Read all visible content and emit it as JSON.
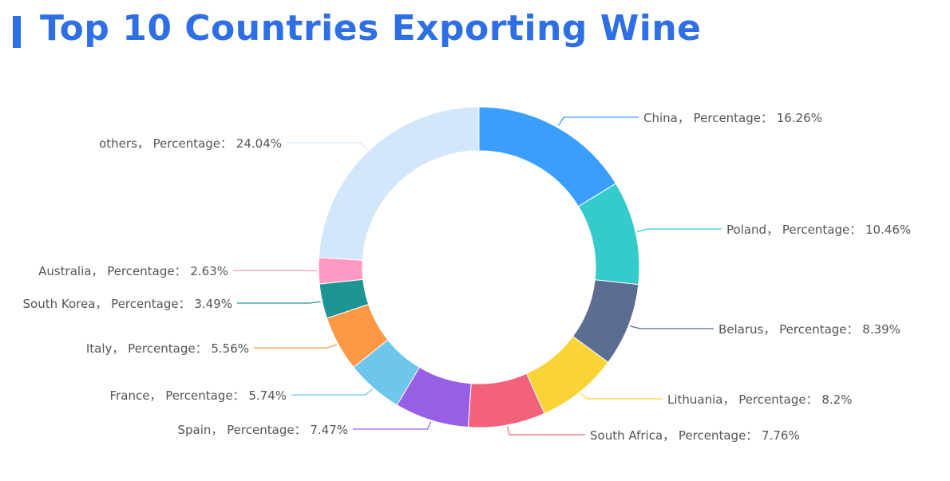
{
  "title": "Top 10 Countries Exporting Wine",
  "chart_data": {
    "type": "pie",
    "variant": "donut",
    "title": "Top 10 Countries Exporting Wine",
    "label_format": "{name}， Percentage： {value}%",
    "slices": [
      {
        "name": "China",
        "value": 16.26,
        "color": "#3a9ffc"
      },
      {
        "name": "Poland",
        "value": 10.46,
        "color": "#35cbca"
      },
      {
        "name": "Belarus",
        "value": 8.39,
        "color": "#5b6d90"
      },
      {
        "name": "Lithuania",
        "value": 8.2,
        "color": "#fad337"
      },
      {
        "name": "South Africa",
        "value": 7.76,
        "color": "#f2637b"
      },
      {
        "name": "Spain",
        "value": 7.47,
        "color": "#975fe5"
      },
      {
        "name": "France",
        "value": 5.74,
        "color": "#6ec6ed"
      },
      {
        "name": "Italy",
        "value": 5.56,
        "color": "#ff9845"
      },
      {
        "name": "South Korea",
        "value": 3.49,
        "color": "#1e9493"
      },
      {
        "name": "Australia",
        "value": 2.63,
        "color": "#ff99c3"
      },
      {
        "name": "others",
        "value": 24.04,
        "color": "#d2e6fc"
      }
    ]
  }
}
